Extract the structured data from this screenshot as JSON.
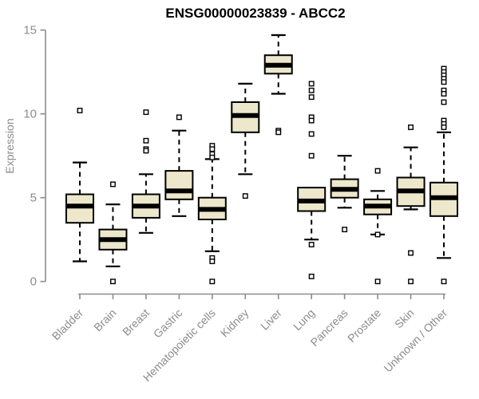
{
  "chart_data": {
    "type": "boxplot",
    "title": "ENSG00000023839 - ABCC2",
    "ylabel": "Expression",
    "xlabel": "",
    "ylim": [
      0,
      15
    ],
    "yticks": [
      0,
      5,
      10,
      15
    ],
    "grid": false,
    "legend_position": "none",
    "categories": [
      "Bladder",
      "Brain",
      "Breast",
      "Gastric",
      "Hematopoietic cells",
      "Kidney",
      "Liver",
      "Lung",
      "Pancreas",
      "Prostate",
      "Skin",
      "Unknown / Other"
    ],
    "series": [
      {
        "category": "Bladder",
        "whisker_low": 1.2,
        "q1": 3.5,
        "median": 4.5,
        "q3": 5.2,
        "whisker_high": 7.1,
        "outliers": [
          10.2
        ]
      },
      {
        "category": "Brain",
        "whisker_low": 0.9,
        "q1": 1.9,
        "median": 2.5,
        "q3": 3.1,
        "whisker_high": 4.6,
        "outliers": [
          5.8,
          0
        ]
      },
      {
        "category": "Breast",
        "whisker_low": 2.9,
        "q1": 3.8,
        "median": 4.5,
        "q3": 5.2,
        "whisker_high": 6.4,
        "outliers": [
          10.1,
          8.4,
          7.9,
          7.8
        ]
      },
      {
        "category": "Gastric",
        "whisker_low": 3.9,
        "q1": 4.9,
        "median": 5.4,
        "q3": 6.6,
        "whisker_high": 9.0,
        "outliers": [
          9.8
        ]
      },
      {
        "category": "Hematopoietic cells",
        "whisker_low": 1.8,
        "q1": 3.7,
        "median": 4.3,
        "q3": 5.0,
        "whisker_high": 7.3,
        "outliers": [
          8.1,
          7.9,
          7.6,
          7.4,
          1.4,
          1.2,
          0
        ]
      },
      {
        "category": "Kidney",
        "whisker_low": 6.4,
        "q1": 8.9,
        "median": 9.9,
        "q3": 10.7,
        "whisker_high": 11.8,
        "outliers": [
          5.1
        ]
      },
      {
        "category": "Liver",
        "whisker_low": 11.2,
        "q1": 12.4,
        "median": 12.9,
        "q3": 13.5,
        "whisker_high": 14.7,
        "outliers": [
          9.0,
          8.9
        ]
      },
      {
        "category": "Lung",
        "whisker_low": 2.5,
        "q1": 4.2,
        "median": 4.8,
        "q3": 5.6,
        "whisker_high": 5.6,
        "outliers": [
          11.8,
          11.4,
          11.0,
          9.8,
          9.6,
          8.8,
          7.5,
          2.2,
          0.3
        ]
      },
      {
        "category": "Pancreas",
        "whisker_low": 4.4,
        "q1": 5.0,
        "median": 5.5,
        "q3": 6.1,
        "whisker_high": 7.5,
        "outliers": [
          3.1
        ]
      },
      {
        "category": "Prostate",
        "whisker_low": 2.8,
        "q1": 4.0,
        "median": 4.5,
        "q3": 4.9,
        "whisker_high": 5.4,
        "outliers": [
          6.6,
          2.8,
          0
        ]
      },
      {
        "category": "Skin",
        "whisker_low": 4.3,
        "q1": 4.5,
        "median": 5.4,
        "q3": 6.2,
        "whisker_high": 8.0,
        "outliers": [
          9.2,
          1.7,
          0
        ]
      },
      {
        "category": "Unknown / Other",
        "whisker_low": 1.4,
        "q1": 3.9,
        "median": 5.0,
        "q3": 5.9,
        "whisker_high": 8.9,
        "outliers": [
          12.7,
          12.5,
          12.3,
          12.1,
          11.9,
          11.4,
          11.2,
          10.7,
          9.6,
          9.4,
          9.2,
          0
        ]
      }
    ],
    "colors": {
      "box_fill": "#EDE7CC",
      "box_border": "#000000",
      "median": "#000000",
      "whisker": "#000000",
      "outlier_stroke": "#000000",
      "axis": "#8C8C8C",
      "tick_label": "#8C8C8C",
      "title": "#000000",
      "background": "#FFFFFF"
    }
  }
}
